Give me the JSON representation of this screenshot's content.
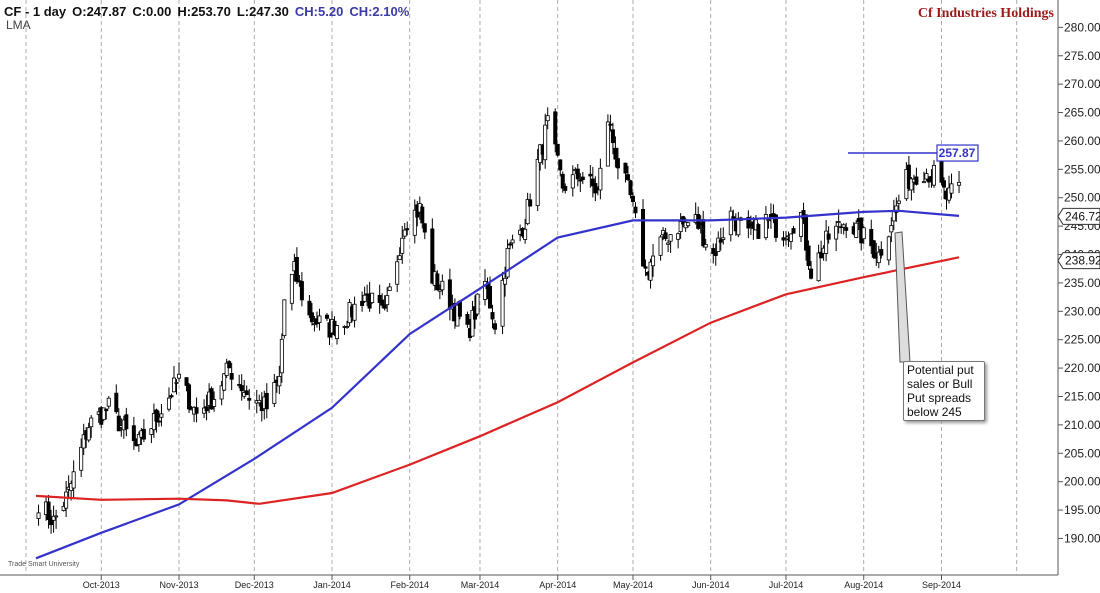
{
  "header": {
    "symbol_line": "CF - 1 day",
    "open": "O:247.87",
    "close": "C:0.00",
    "high": "H:253.70",
    "low": "L:247.30",
    "change": "CH:5.20",
    "change_pct": "CH:2.10%",
    "indicator": "LMA"
  },
  "title": "Cf Industries Holdings",
  "watermark": "Trade Smart University",
  "annotation": "Potential put sales or Bull Put spreads below 245",
  "colors": {
    "up": "#ffffff",
    "down": "#000000",
    "ma_fast": "#3333cc",
    "ma_slow": "#dd2222",
    "resistance": "#3333cc",
    "title": "#9b1b1b",
    "grid": "#999999"
  },
  "chart_data": {
    "type": "candlestick",
    "title": "Cf Industries Holdings",
    "x_tick_labels": [
      "Oct-2013",
      "Nov-2013",
      "Dec-2013",
      "Jan-2014",
      "Feb-2014",
      "Mar-2014",
      "Apr-2014",
      "May-2014",
      "Jun-2014",
      "Jul-2014",
      "Aug-2014",
      "Sep-2014"
    ],
    "y_tick_labels": [
      "190.00",
      "195.00",
      "200.00",
      "205.00",
      "210.00",
      "215.00",
      "220.00",
      "225.00",
      "230.00",
      "235.00",
      "240.00",
      "245.00",
      "250.00",
      "255.00",
      "260.00",
      "265.00",
      "270.00",
      "275.00",
      "280.00"
    ],
    "ylim": [
      185.5,
      282
    ],
    "grid": "vertical dashed at month starts",
    "price_labels": [
      {
        "text": "257.87",
        "value": 257.87,
        "color": "#3333cc"
      },
      {
        "text": "246.72",
        "value": 246.72,
        "color": "#000000"
      },
      {
        "text": "238.92",
        "value": 238.92,
        "color": "#000000"
      }
    ],
    "resistance_level": 257.87,
    "price_anchors": [
      [
        "2013-09-06",
        196.5
      ],
      [
        "2013-09-12",
        193
      ],
      [
        "2013-09-18",
        198
      ],
      [
        "2013-09-26",
        210
      ],
      [
        "2013-10-04",
        213
      ],
      [
        "2013-10-15",
        206
      ],
      [
        "2013-10-24",
        212
      ],
      [
        "2013-11-01",
        218
      ],
      [
        "2013-11-08",
        212
      ],
      [
        "2013-11-15",
        215
      ],
      [
        "2013-11-21",
        220
      ],
      [
        "2013-11-29",
        215
      ],
      [
        "2013-12-06",
        213
      ],
      [
        "2013-12-11",
        218
      ],
      [
        "2013-12-13",
        232
      ],
      [
        "2013-12-17",
        237
      ],
      [
        "2013-12-23",
        229
      ],
      [
        "2013-12-31",
        227
      ],
      [
        "2014-01-07",
        229
      ],
      [
        "2014-01-14",
        233
      ],
      [
        "2014-01-22",
        229
      ],
      [
        "2014-01-30",
        246
      ],
      [
        "2014-02-05",
        248
      ],
      [
        "2014-02-10",
        236
      ],
      [
        "2014-02-17",
        232
      ],
      [
        "2014-02-24",
        226
      ],
      [
        "2014-03-03",
        235
      ],
      [
        "2014-03-07",
        228
      ],
      [
        "2014-03-12",
        240
      ],
      [
        "2014-03-19",
        246
      ],
      [
        "2014-03-24",
        256
      ],
      [
        "2014-03-28",
        263
      ],
      [
        "2014-04-03",
        252
      ],
      [
        "2014-04-10",
        254
      ],
      [
        "2014-04-17",
        251
      ],
      [
        "2014-04-21",
        264
      ],
      [
        "2014-04-25",
        256
      ],
      [
        "2014-04-30",
        250
      ],
      [
        "2014-05-06",
        237
      ],
      [
        "2014-05-12",
        242
      ],
      [
        "2014-05-19",
        245
      ],
      [
        "2014-05-26",
        246
      ],
      [
        "2014-06-02",
        240
      ],
      [
        "2014-06-09",
        247
      ],
      [
        "2014-06-16",
        243
      ],
      [
        "2014-06-23",
        246
      ],
      [
        "2014-06-30",
        244
      ],
      [
        "2014-07-07",
        247
      ],
      [
        "2014-07-11",
        237
      ],
      [
        "2014-07-18",
        243
      ],
      [
        "2014-07-25",
        246
      ],
      [
        "2014-08-01",
        243
      ],
      [
        "2014-08-07",
        240
      ],
      [
        "2014-08-12",
        246
      ],
      [
        "2014-08-18",
        253
      ],
      [
        "2014-08-24",
        255
      ],
      [
        "2014-08-29",
        254
      ],
      [
        "2014-09-03",
        250
      ],
      [
        "2014-09-08",
        251.5
      ]
    ],
    "series": [
      {
        "name": "",
        "color": "#3333cc",
        "points": [
          [
            "2013-09-05",
            186.5
          ],
          [
            "2013-10-01",
            191
          ],
          [
            "2013-11-01",
            196
          ],
          [
            "2013-12-01",
            204
          ],
          [
            "2014-01-01",
            213
          ],
          [
            "2014-02-01",
            226
          ],
          [
            "2014-03-01",
            234
          ],
          [
            "2014-04-01",
            243
          ],
          [
            "2014-05-01",
            246
          ],
          [
            "2014-06-01",
            246
          ],
          [
            "2014-07-01",
            246.5
          ],
          [
            "2014-08-01",
            247.5
          ],
          [
            "2014-08-15",
            247.7
          ],
          [
            "2014-09-08",
            246.8
          ]
        ]
      },
      {
        "name": "",
        "color": "#dd2222",
        "points": [
          [
            "2013-09-05",
            197.5
          ],
          [
            "2013-10-01",
            196.8
          ],
          [
            "2013-11-01",
            197
          ],
          [
            "2013-11-20",
            196.7
          ],
          [
            "2013-12-03",
            196.1
          ],
          [
            "2014-01-01",
            198
          ],
          [
            "2014-02-01",
            203
          ],
          [
            "2014-03-01",
            208
          ],
          [
            "2014-04-01",
            214
          ],
          [
            "2014-05-01",
            221
          ],
          [
            "2014-06-01",
            228
          ],
          [
            "2014-07-01",
            233
          ],
          [
            "2014-08-01",
            236
          ],
          [
            "2014-09-08",
            239.5
          ]
        ]
      }
    ]
  }
}
